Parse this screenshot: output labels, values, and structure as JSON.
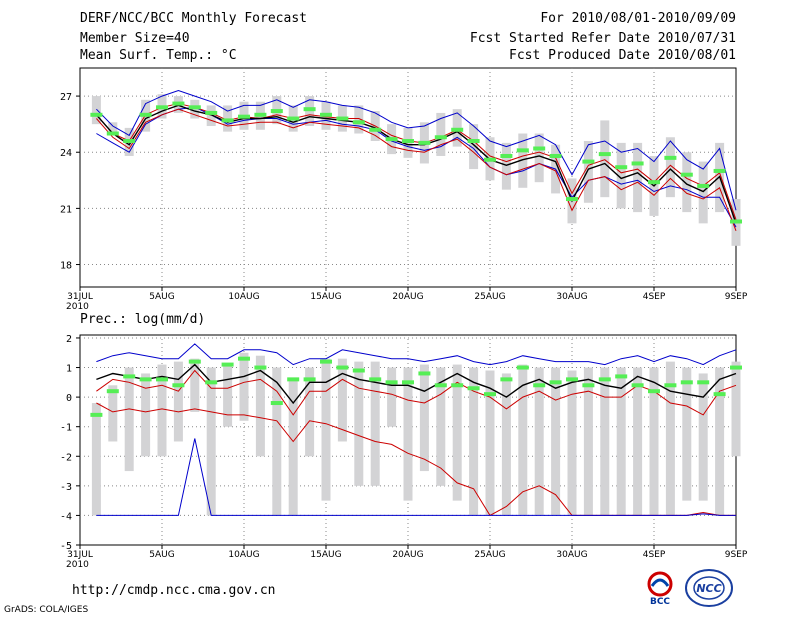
{
  "header": {
    "title": "DERF/NCC/BCC Monthly Forecast",
    "member_size": "Member Size=40",
    "variable_top": "Mean Surf. Temp.: °C",
    "period": "For 2010/08/01-2010/09/09",
    "fcst_started": "Fcst Started Refer Date 2010/07/31",
    "fcst_produced": "Fcst Produced Date 2010/08/01"
  },
  "footer": {
    "url": "http://cmdp.ncc.cma.gov.cn",
    "grads": "GrADS: COLA/IGES",
    "logo_bcc": "BCC",
    "logo_ncc": "NCC"
  },
  "colors": {
    "spread_box": "#d3d3d5",
    "max_line": "#0000cc",
    "min_line": "#0000cc",
    "mean_line": "#000000",
    "upper_line": "#cc0000",
    "green_marker": "#55ee55",
    "grid": "#888888"
  },
  "chart_data": [
    {
      "type": "line",
      "title": "Mean Surf. Temp.: °C",
      "x_tick_labels": [
        "31JUL",
        "5AUG",
        "10AUG",
        "15AUG",
        "20AUG",
        "25AUG",
        "30AUG",
        "4SEP",
        "9SEP"
      ],
      "x_tick_year": "2010",
      "days": 40,
      "ylim": [
        16.8,
        28.5
      ],
      "yticks": [
        18,
        21,
        24,
        27
      ],
      "series": [
        {
          "name": "max",
          "values": [
            25.0,
            24.5,
            24.0,
            25.5,
            26.0,
            26.3,
            26.4,
            26.0,
            25.5,
            25.7,
            25.8,
            25.8,
            25.5,
            25.6,
            25.7,
            25.5,
            25.4,
            25.2,
            24.6,
            24.3,
            24.1,
            24.3,
            24.8,
            24.2,
            23.2,
            22.8,
            23.0,
            23.4,
            23.1,
            21.6,
            22.5,
            22.7,
            22.3,
            22.5,
            21.9,
            22.2,
            22.0,
            21.6,
            21.6,
            20.0
          ]
        },
        {
          "name": "upper",
          "values": [
            26.0,
            25.0,
            24.6,
            26.0,
            26.4,
            26.6,
            26.4,
            26.1,
            25.7,
            25.9,
            25.8,
            26.0,
            25.8,
            26.0,
            25.9,
            25.8,
            25.8,
            25.4,
            24.9,
            24.6,
            24.5,
            24.8,
            25.2,
            24.6,
            23.8,
            23.5,
            23.8,
            24.0,
            23.7,
            21.8,
            23.3,
            23.6,
            22.9,
            23.1,
            22.4,
            23.3,
            22.6,
            22.2,
            22.9,
            20.4
          ]
        },
        {
          "name": "mean",
          "values": [
            26.0,
            25.0,
            24.4,
            25.8,
            26.2,
            26.5,
            26.2,
            26.0,
            25.6,
            25.8,
            25.8,
            25.9,
            25.6,
            25.9,
            25.8,
            25.7,
            25.6,
            25.3,
            24.7,
            24.4,
            24.4,
            24.7,
            25.1,
            24.4,
            23.6,
            23.3,
            23.6,
            23.8,
            23.5,
            21.4,
            23.1,
            23.4,
            22.6,
            22.9,
            22.2,
            23.1,
            22.3,
            21.9,
            22.7,
            20.2
          ]
        },
        {
          "name": "lower",
          "values": [
            25.8,
            24.8,
            24.2,
            25.6,
            26.0,
            26.3,
            26.0,
            25.7,
            25.4,
            25.5,
            25.6,
            25.6,
            25.3,
            25.6,
            25.5,
            25.4,
            25.3,
            24.9,
            24.3,
            24.1,
            24.0,
            24.4,
            24.7,
            24.0,
            23.2,
            22.8,
            23.1,
            23.4,
            23.0,
            20.9,
            22.5,
            22.7,
            22.0,
            22.4,
            21.7,
            22.6,
            21.8,
            21.5,
            22.1,
            19.8
          ]
        },
        {
          "name": "min",
          "values": [
            26.3,
            25.4,
            24.9,
            26.6,
            27.0,
            27.3,
            27.0,
            26.7,
            26.2,
            26.5,
            26.5,
            26.8,
            26.4,
            26.8,
            26.7,
            26.5,
            26.4,
            26.1,
            25.6,
            25.3,
            25.4,
            25.8,
            26.1,
            25.4,
            24.6,
            24.3,
            24.6,
            24.9,
            24.4,
            22.8,
            24.4,
            24.6,
            24.0,
            24.2,
            23.5,
            24.6,
            23.6,
            23.1,
            24.2,
            20.9
          ]
        },
        {
          "name": "green",
          "values": [
            26.0,
            25.0,
            24.6,
            26.0,
            26.4,
            26.6,
            26.4,
            26.1,
            25.7,
            25.9,
            26.0,
            26.2,
            25.8,
            26.3,
            26.0,
            25.8,
            25.6,
            25.2,
            24.7,
            24.6,
            24.5,
            24.8,
            25.2,
            24.6,
            23.6,
            23.8,
            24.1,
            24.2,
            23.8,
            21.5,
            23.5,
            23.9,
            23.2,
            23.4,
            22.4,
            23.7,
            22.8,
            22.2,
            23.0,
            20.3
          ]
        }
      ],
      "boxes": {
        "low": [
          25.5,
          24.9,
          23.8,
          25.1,
          25.8,
          26.1,
          25.8,
          25.4,
          25.1,
          25.2,
          25.2,
          25.5,
          25.1,
          25.4,
          25.2,
          25.1,
          25.0,
          24.6,
          23.9,
          23.7,
          23.4,
          23.8,
          24.3,
          23.1,
          22.5,
          22.0,
          22.1,
          22.4,
          21.8,
          20.2,
          21.3,
          21.6,
          21.0,
          20.8,
          20.6,
          21.6,
          20.8,
          20.2,
          20.8,
          19.0
        ],
        "high": [
          27.0,
          25.6,
          25.3,
          26.8,
          27.1,
          27.0,
          26.8,
          26.5,
          26.5,
          26.7,
          26.7,
          27.0,
          26.5,
          27.0,
          26.7,
          26.5,
          26.5,
          26.2,
          25.5,
          25.3,
          25.6,
          26.1,
          26.3,
          25.5,
          24.8,
          24.5,
          25.0,
          25.0,
          24.4,
          22.6,
          24.6,
          25.7,
          24.5,
          24.5,
          23.8,
          24.8,
          24.0,
          23.5,
          24.5,
          21.5
        ]
      },
      "xlabel": "",
      "ylabel": "°C"
    },
    {
      "type": "line",
      "title": "Prec.: log(mm/d)",
      "x_tick_labels": [
        "31JUL",
        "5AUG",
        "10AUG",
        "15AUG",
        "20AUG",
        "25AUG",
        "30AUG",
        "4SEP",
        "9SEP"
      ],
      "x_tick_year": "2010",
      "days": 40,
      "ylim": [
        -5,
        2.1
      ],
      "yticks": [
        -5,
        -4,
        -3,
        -2,
        -1,
        0,
        1,
        2
      ],
      "series": [
        {
          "name": "max",
          "values": [
            1.2,
            1.4,
            1.5,
            1.4,
            1.3,
            1.3,
            1.8,
            1.3,
            1.3,
            1.6,
            1.6,
            1.5,
            1.1,
            1.3,
            1.3,
            1.6,
            1.5,
            1.4,
            1.3,
            1.3,
            1.2,
            1.3,
            1.4,
            1.2,
            1.1,
            1.2,
            1.4,
            1.3,
            1.2,
            1.2,
            1.2,
            1.1,
            1.3,
            1.4,
            1.2,
            1.4,
            1.3,
            1.1,
            1.4,
            1.6
          ]
        },
        {
          "name": "mean",
          "values": [
            0.6,
            0.8,
            0.7,
            0.6,
            0.7,
            0.6,
            1.1,
            0.5,
            0.6,
            0.7,
            0.9,
            0.5,
            -0.2,
            0.5,
            0.5,
            0.8,
            0.6,
            0.5,
            0.4,
            0.4,
            0.2,
            0.5,
            0.8,
            0.5,
            0.3,
            0.0,
            0.4,
            0.6,
            0.3,
            0.5,
            0.6,
            0.4,
            0.3,
            0.7,
            0.5,
            0.2,
            0.1,
            0.0,
            0.6,
            0.8
          ]
        },
        {
          "name": "upper",
          "values": [
            0.2,
            0.6,
            0.5,
            0.3,
            0.4,
            0.2,
            0.9,
            0.3,
            0.3,
            0.5,
            0.6,
            0.2,
            -0.6,
            0.2,
            0.2,
            0.6,
            0.3,
            0.2,
            0.1,
            -0.1,
            -0.2,
            0.1,
            0.5,
            0.2,
            0.0,
            -0.4,
            0.0,
            0.2,
            -0.1,
            0.1,
            0.2,
            0.0,
            0.0,
            0.4,
            0.2,
            -0.2,
            -0.3,
            -0.6,
            0.2,
            0.4
          ]
        },
        {
          "name": "lower",
          "values": [
            -0.2,
            -0.5,
            -0.4,
            -0.5,
            -0.4,
            -0.5,
            -0.4,
            -0.5,
            -0.6,
            -0.6,
            -0.7,
            -0.8,
            -1.5,
            -0.8,
            -0.9,
            -1.1,
            -1.3,
            -1.5,
            -1.6,
            -1.9,
            -2.1,
            -2.4,
            -2.9,
            -3.1,
            -4.0,
            -3.7,
            -3.2,
            -3.0,
            -3.3,
            -4.0,
            -4.0,
            -4.0,
            -4.0,
            -4.0,
            -4.0,
            -4.0,
            -4.0,
            -3.9,
            -4.0,
            -4.0
          ]
        },
        {
          "name": "min",
          "values": [
            -4.0,
            -4.0,
            -4.0,
            -4.0,
            -4.0,
            -4.0,
            -1.4,
            -4.0,
            -4.0,
            -4.0,
            -4.0,
            -4.0,
            -4.0,
            -4.0,
            -4.0,
            -4.0,
            -4.0,
            -4.0,
            -4.0,
            -4.0,
            -4.0,
            -4.0,
            -4.0,
            -4.0,
            -4.0,
            -4.0,
            -4.0,
            -4.0,
            -4.0,
            -4.0,
            -4.0,
            -4.0,
            -4.0,
            -4.0,
            -4.0,
            -4.0,
            -4.0,
            -3.95,
            -4.0,
            -4.0
          ]
        },
        {
          "name": "green",
          "values": [
            -0.6,
            0.2,
            0.7,
            0.6,
            0.6,
            0.4,
            1.2,
            0.5,
            1.1,
            1.3,
            1.0,
            -0.2,
            0.6,
            0.6,
            1.2,
            1.0,
            0.9,
            0.6,
            0.5,
            0.5,
            0.8,
            0.4,
            0.4,
            0.3,
            0.1,
            0.6,
            1.0,
            0.4,
            0.5,
            0.6,
            0.4,
            0.6,
            0.7,
            0.4,
            0.2,
            0.4,
            0.5,
            0.5,
            0.1,
            1.0
          ]
        }
      ],
      "green_right": 1.1,
      "boxes": {
        "low": [
          -4.0,
          -1.5,
          -2.5,
          -2.0,
          -2.0,
          -1.5,
          -0.5,
          -4.0,
          -1.0,
          -0.8,
          -2.0,
          -4.0,
          -4.0,
          -2.0,
          -3.5,
          -1.5,
          -3.0,
          -3.0,
          -1.0,
          -3.5,
          -2.5,
          -3.0,
          -3.5,
          -4.0,
          -4.0,
          -4.0,
          -4.0,
          -4.0,
          -4.0,
          -4.0,
          -4.0,
          -4.0,
          -4.0,
          -4.0,
          -4.0,
          -4.0,
          -3.5,
          -3.5,
          -4.0,
          -2.0
        ],
        "high": [
          -0.2,
          0.4,
          1.0,
          0.8,
          1.1,
          1.2,
          1.3,
          1.0,
          1.1,
          1.5,
          1.4,
          1.0,
          0.6,
          1.0,
          1.3,
          1.3,
          1.2,
          1.2,
          1.0,
          1.0,
          1.1,
          1.0,
          1.1,
          1.0,
          0.9,
          0.8,
          1.1,
          1.0,
          1.0,
          0.9,
          1.0,
          1.0,
          1.0,
          1.0,
          1.0,
          1.2,
          1.0,
          0.8,
          1.0,
          1.2
        ]
      },
      "xlabel": "",
      "ylabel": "log(mm/d)"
    }
  ]
}
